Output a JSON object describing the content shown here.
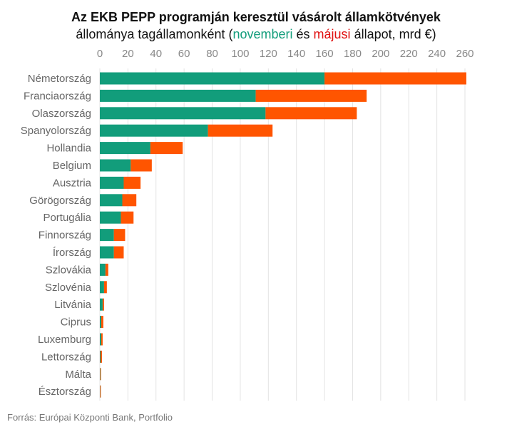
{
  "title": {
    "line1": "Az EKB PEPP programján keresztül vásárolt államkötvények",
    "line2_prefix": "állománya tagállamonként (",
    "nov_word": "novemberi",
    "middle": " és ",
    "maj_word": "májusi",
    "line2_suffix": " állapot, mrd €)"
  },
  "source": "Forrás: Európai Központi Bank, Portfolio",
  "colors": {
    "november": "#129d7b",
    "may": "#ff5500",
    "grid": "#e3e3e3"
  },
  "chart_data": {
    "type": "bar",
    "orientation": "horizontal",
    "stacked": true,
    "xlim": [
      0,
      260
    ],
    "xticks": [
      0,
      20,
      40,
      60,
      80,
      100,
      120,
      140,
      160,
      180,
      200,
      220,
      240,
      260
    ],
    "xaxis_position": "top",
    "grid": true,
    "categories": [
      "Németország",
      "Franciaország",
      "Olaszország",
      "Spanyolország",
      "Hollandia",
      "Belgium",
      "Ausztria",
      "Görögország",
      "Portugália",
      "Finnország",
      "Írország",
      "Szlovákia",
      "Szlovénia",
      "Litvánia",
      "Ciprus",
      "Luxemburg",
      "Lettország",
      "Málta",
      "Észtország"
    ],
    "series": [
      {
        "name": "novemberi",
        "values": [
          160,
          111,
          118,
          77,
          36,
          22,
          17,
          16,
          15,
          10,
          10,
          4,
          3,
          2,
          1,
          1,
          0.5,
          0.3,
          0.2
        ]
      },
      {
        "name": "májusi",
        "values": [
          101,
          79,
          65,
          46,
          23,
          15,
          12,
          10,
          9,
          8,
          7,
          2,
          2,
          1,
          1.5,
          1,
          1,
          0.5,
          0.5
        ]
      }
    ]
  }
}
